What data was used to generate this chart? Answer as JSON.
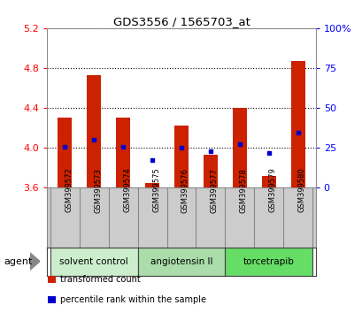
{
  "title": "GDS3556 / 1565703_at",
  "samples": [
    "GSM399572",
    "GSM399573",
    "GSM399574",
    "GSM399575",
    "GSM399576",
    "GSM399577",
    "GSM399578",
    "GSM399579",
    "GSM399580"
  ],
  "bar_values": [
    4.3,
    4.73,
    4.3,
    3.65,
    4.22,
    3.93,
    4.4,
    3.72,
    4.87
  ],
  "percentile_values": [
    4.01,
    4.08,
    4.01,
    3.88,
    4.0,
    3.97,
    4.04,
    3.95,
    4.15
  ],
  "bar_bottom": 3.6,
  "ylim": [
    3.6,
    5.2
  ],
  "yticks": [
    3.6,
    4.0,
    4.4,
    4.8,
    5.2
  ],
  "ytick_labels": [
    "3.6",
    "4.0",
    "4.4",
    "4.8",
    "5.2"
  ],
  "y2ticks": [
    0,
    25,
    50,
    75,
    100
  ],
  "y2tick_labels": [
    "0",
    "25",
    "50",
    "75",
    "100%"
  ],
  "bar_color": "#cc2200",
  "dot_color": "#0000cc",
  "groups": [
    {
      "label": "solvent control",
      "indices": [
        0,
        1,
        2
      ],
      "color": "#cceecc"
    },
    {
      "label": "angiotensin II",
      "indices": [
        3,
        4,
        5
      ],
      "color": "#aaddaa"
    },
    {
      "label": "torcetrapib",
      "indices": [
        6,
        7,
        8
      ],
      "color": "#66dd66"
    }
  ],
  "agent_label": "agent",
  "legend_items": [
    {
      "label": "transformed count",
      "color": "#cc2200"
    },
    {
      "label": "percentile rank within the sample",
      "color": "#0000cc"
    }
  ],
  "grid_color": "#000000",
  "label_area_color": "#cccccc",
  "bar_width": 0.5
}
